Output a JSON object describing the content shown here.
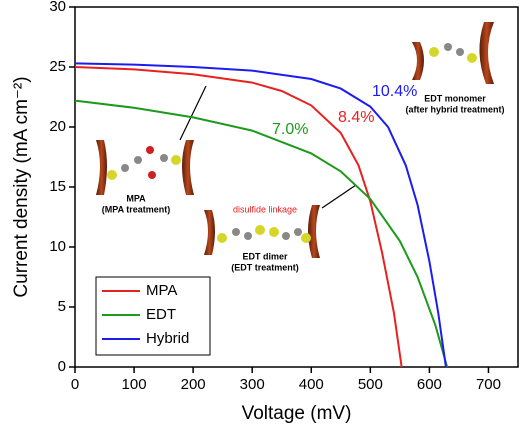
{
  "chart_data": {
    "type": "line",
    "x_label": "Voltage (mV)",
    "y_label": "Current density (mA cm⁻²)",
    "xlim": [
      0,
      750
    ],
    "xticks": [
      0,
      100,
      200,
      300,
      400,
      500,
      600,
      700
    ],
    "ylim": [
      0,
      30
    ],
    "yticks": [
      0,
      5,
      10,
      15,
      20,
      25,
      30
    ],
    "legend": "bottom-left",
    "series": [
      {
        "name": "MPA",
        "color": "#e8211f",
        "x": [
          0,
          100,
          200,
          300,
          350,
          400,
          450,
          480,
          500,
          520,
          540,
          553
        ],
        "values": [
          25.0,
          24.8,
          24.4,
          23.7,
          23.0,
          21.8,
          19.5,
          16.8,
          13.8,
          9.5,
          4.5,
          0
        ]
      },
      {
        "name": "EDT",
        "color": "#1c9a1c",
        "x": [
          0,
          100,
          200,
          300,
          400,
          450,
          500,
          550,
          580,
          610,
          630
        ],
        "values": [
          22.2,
          21.6,
          20.8,
          19.7,
          17.8,
          16.3,
          14.0,
          10.5,
          7.5,
          3.5,
          0
        ]
      },
      {
        "name": "Hybrid",
        "color": "#1c1cf0",
        "x": [
          0,
          100,
          200,
          300,
          400,
          450,
          500,
          530,
          560,
          580,
          600,
          615,
          628
        ],
        "values": [
          25.3,
          25.2,
          25.0,
          24.7,
          24.0,
          23.2,
          21.7,
          20.0,
          16.8,
          13.5,
          8.8,
          4.5,
          0
        ]
      }
    ],
    "annotations": [
      {
        "text": "10.4%",
        "color": "#1c1cf0"
      },
      {
        "text": "8.4%",
        "color": "#e8211f"
      },
      {
        "text": "7.0%",
        "color": "#1c9a1c"
      },
      {
        "text": "EDT monomer",
        "color": "#000000"
      },
      {
        "text": "(after hybrid treatment)",
        "color": "#000000"
      },
      {
        "text": "MPA",
        "color": "#000000"
      },
      {
        "text": "(MPA treatment)",
        "color": "#000000"
      },
      {
        "text": "disulfide linkage",
        "color": "#e8211f"
      },
      {
        "text": "EDT dimer",
        "color": "#000000"
      },
      {
        "text": "(EDT treatment)",
        "color": "#000000"
      }
    ]
  }
}
